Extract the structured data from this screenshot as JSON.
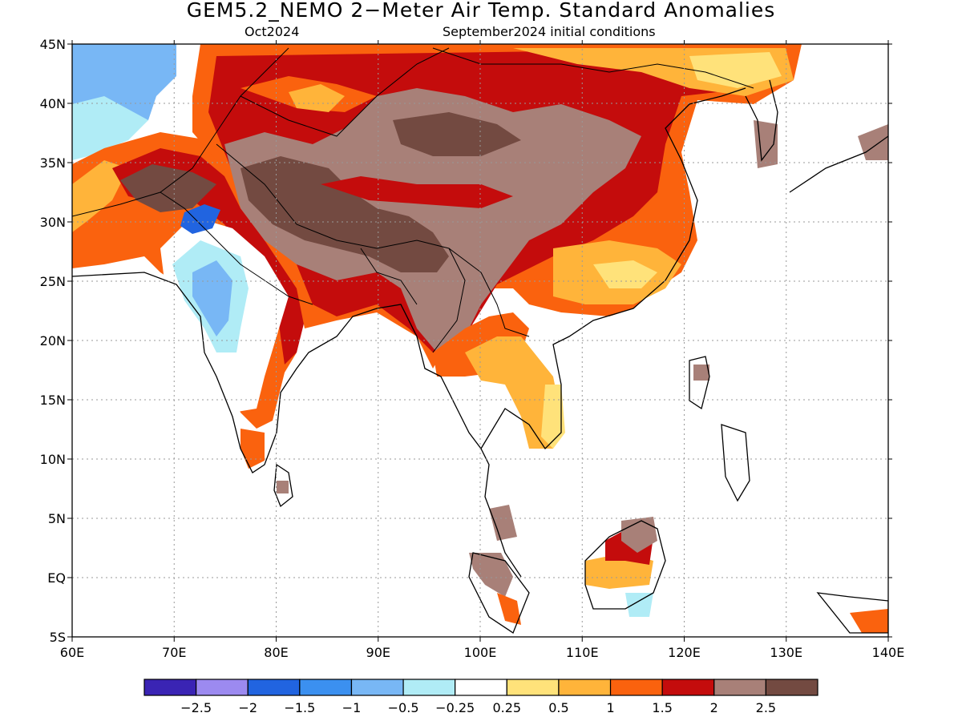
{
  "map": {
    "title": "GEM5.2_NEMO 2−Meter Air Temp. Standard Anomalies",
    "forecast_month": "Oct2024",
    "initial_conditions": "September2024 initial conditions",
    "lon_labels": [
      "60E",
      "70E",
      "80E",
      "90E",
      "100E",
      "110E",
      "120E",
      "130E",
      "140E"
    ],
    "lat_labels": [
      "45N",
      "40N",
      "35N",
      "30N",
      "25N",
      "20N",
      "15N",
      "10N",
      "5N",
      "EQ",
      "5S"
    ],
    "colorbar": {
      "colors": [
        "#3a24b4",
        "#9c8af0",
        "#2164e0",
        "#3b90f0",
        "#78b7f5",
        "#b0ecf6",
        "#ffffff",
        "#ffe27a",
        "#ffb43a",
        "#fa620e",
        "#c40c0c",
        "#a88078",
        "#734a41"
      ],
      "labels": [
        "−2.5",
        "−2",
        "−1.5",
        "−1",
        "−0.5",
        "−0.25",
        "0.25",
        "0.5",
        "1",
        "1.5",
        "2",
        "2.5"
      ]
    },
    "anomaly_colors": {
      "strong_positive": "#734a41",
      "positive_2": "#a88078",
      "positive_1_5": "#c40c0c",
      "positive_1": "#fa620e",
      "positive_0_5": "#ffb43a",
      "positive_0_25": "#ffe27a",
      "negative_0_25": "#b0ecf6",
      "negative_0_5": "#78b7f5",
      "negative_1": "#3b90f0",
      "negative_1_5": "#2164e0"
    }
  }
}
